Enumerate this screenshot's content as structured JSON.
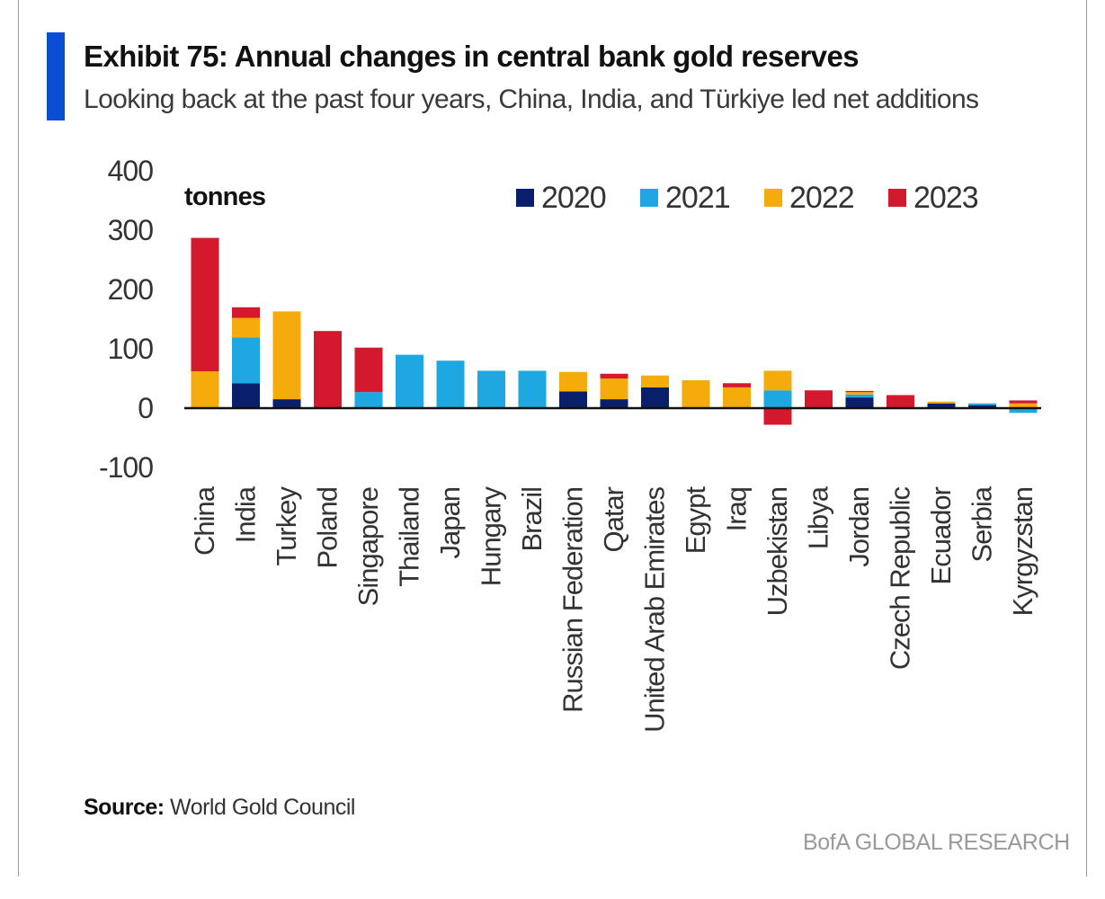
{
  "header": {
    "title": "Exhibit 75: Annual changes in central bank gold reserves",
    "subtitle": "Looking back at the past four years, China, India, and Türkiye led net additions"
  },
  "footer": {
    "source_label": "Source:",
    "source_text": "World Gold Council",
    "brand": "BofA GLOBAL RESEARCH"
  },
  "colors": {
    "accent": "#0a4fd1",
    "2020": "#0a1f6b",
    "2021": "#1ea7e1",
    "2022": "#f5ab0c",
    "2023": "#d4182e"
  },
  "chart_data": {
    "type": "bar",
    "stacked": true,
    "unit_label": "tonnes",
    "ylim": [
      -100,
      400
    ],
    "yticks": [
      -100,
      0,
      100,
      200,
      300,
      400
    ],
    "grid": false,
    "legend_position": "top-right",
    "categories": [
      "China",
      "India",
      "Turkey",
      "Poland",
      "Singapore",
      "Thailand",
      "Japan",
      "Hungary",
      "Brazil",
      "Russian Federation",
      "Qatar",
      "United Arab Emirates",
      "Egypt",
      "Iraq",
      "Uzbekistan",
      "Libya",
      "Jordan",
      "Czech Republic",
      "Ecuador",
      "Serbia",
      "Kyrgyzstan"
    ],
    "series": [
      {
        "name": "2020",
        "values": [
          0,
          42,
          15,
          0,
          0,
          0,
          0,
          0,
          0,
          28,
          15,
          35,
          0,
          0,
          0,
          0,
          18,
          0,
          8,
          5,
          0
        ]
      },
      {
        "name": "2021",
        "values": [
          0,
          77,
          0,
          0,
          27,
          90,
          80,
          63,
          63,
          0,
          0,
          0,
          0,
          0,
          30,
          0,
          5,
          0,
          0,
          3,
          -8
        ]
      },
      {
        "name": "2022",
        "values": [
          62,
          33,
          148,
          0,
          0,
          0,
          0,
          0,
          0,
          33,
          35,
          20,
          47,
          35,
          33,
          0,
          4,
          0,
          3,
          0,
          8
        ]
      },
      {
        "name": "2023",
        "values": [
          225,
          18,
          0,
          130,
          75,
          0,
          0,
          0,
          0,
          0,
          8,
          0,
          0,
          7,
          -28,
          30,
          2,
          22,
          0,
          0,
          5
        ]
      }
    ]
  }
}
